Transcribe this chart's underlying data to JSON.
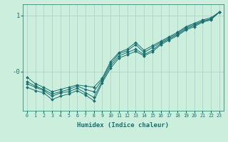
{
  "xlabel": "Humidex (Indice chaleur)",
  "background_color": "#cceedd",
  "grid_color": "#aacccc",
  "line_color": "#1a7070",
  "xlim": [
    -0.5,
    23.5
  ],
  "ylim": [
    -0.7,
    1.2
  ],
  "xticks": [
    0,
    1,
    2,
    3,
    4,
    5,
    6,
    7,
    8,
    9,
    10,
    11,
    12,
    13,
    14,
    15,
    16,
    17,
    18,
    19,
    20,
    21,
    22,
    23
  ],
  "x": [
    0,
    1,
    2,
    3,
    4,
    5,
    6,
    7,
    8,
    9,
    10,
    11,
    12,
    13,
    14,
    15,
    16,
    17,
    18,
    19,
    20,
    21,
    22,
    23
  ],
  "lines": [
    [
      -0.1,
      -0.22,
      -0.28,
      -0.36,
      -0.32,
      -0.28,
      -0.24,
      -0.26,
      -0.28,
      -0.12,
      0.18,
      0.34,
      0.4,
      0.52,
      0.38,
      0.46,
      0.54,
      0.62,
      0.7,
      0.8,
      0.86,
      0.92,
      0.96,
      1.06
    ],
    [
      -0.18,
      -0.26,
      -0.32,
      -0.4,
      -0.36,
      -0.32,
      -0.26,
      -0.32,
      -0.36,
      -0.14,
      0.14,
      0.32,
      0.37,
      0.48,
      0.34,
      0.43,
      0.52,
      0.6,
      0.68,
      0.78,
      0.84,
      0.9,
      0.94,
      1.06
    ],
    [
      -0.22,
      -0.28,
      -0.34,
      -0.44,
      -0.38,
      -0.36,
      -0.3,
      -0.38,
      -0.46,
      -0.17,
      0.1,
      0.28,
      0.34,
      0.4,
      0.3,
      0.38,
      0.5,
      0.58,
      0.66,
      0.76,
      0.82,
      0.9,
      0.93,
      1.06
    ],
    [
      -0.28,
      -0.34,
      -0.38,
      -0.5,
      -0.44,
      -0.4,
      -0.34,
      -0.42,
      -0.52,
      -0.2,
      0.06,
      0.24,
      0.3,
      0.36,
      0.28,
      0.35,
      0.48,
      0.56,
      0.64,
      0.74,
      0.8,
      0.88,
      0.92,
      1.06
    ]
  ],
  "ytick_positions": [
    -0.0,
    1.0
  ],
  "ytick_labels": [
    "-0",
    "1"
  ]
}
